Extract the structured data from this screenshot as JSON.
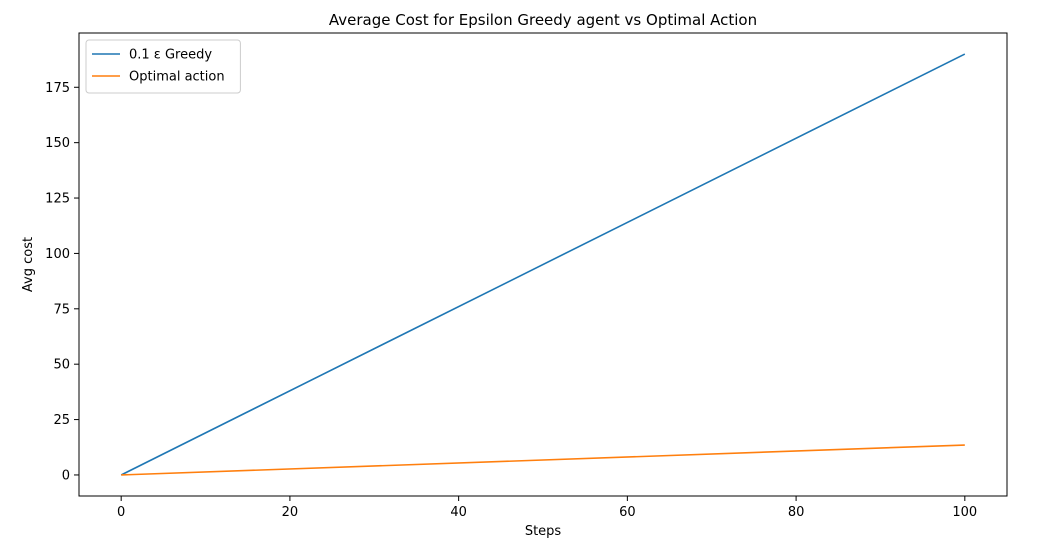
{
  "chart_data": {
    "type": "line",
    "title": "Average Cost for Epsilon Greedy agent vs Optimal Action",
    "xlabel": "Steps",
    "ylabel": "Avg cost",
    "xlim": [
      -5,
      105
    ],
    "ylim": [
      -9.5,
      199.5
    ],
    "xticks": [
      0,
      20,
      40,
      60,
      80,
      100
    ],
    "yticks": [
      0,
      25,
      50,
      75,
      100,
      125,
      150,
      175
    ],
    "grid": false,
    "legend_position": "top-left",
    "series": [
      {
        "name": "0.1 ε Greedy",
        "color": "#1f77b4",
        "x": [
          0,
          100
        ],
        "y": [
          0,
          190
        ]
      },
      {
        "name": "Optimal action",
        "color": "#ff7f0e",
        "x": [
          0,
          100
        ],
        "y": [
          0,
          13.5
        ]
      }
    ]
  }
}
